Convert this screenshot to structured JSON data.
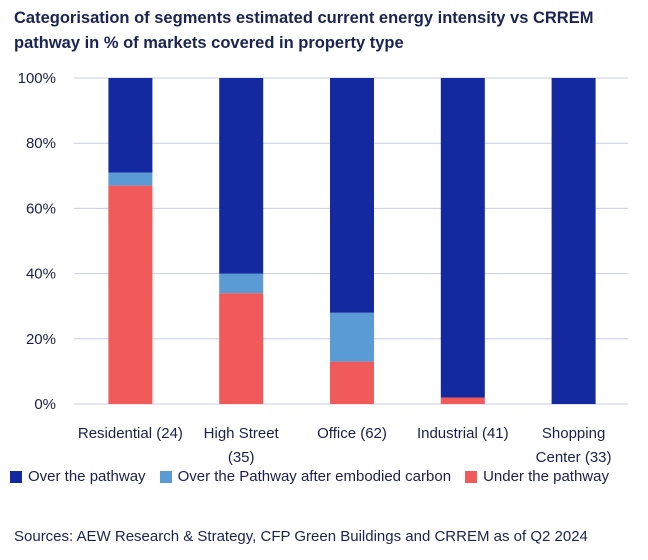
{
  "title": "Categorisation of segments estimated current energy intensity vs CRREM pathway in % of markets covered in property type",
  "source": "Sources: AEW Research & Strategy, CFP Green Buildings and CRREM as of Q2 2024",
  "chart_data": {
    "type": "bar",
    "stacked": true,
    "categories": [
      [
        "Residential (24)"
      ],
      [
        "High Street",
        "(35)"
      ],
      [
        "Office (62)"
      ],
      [
        "Industrial (41)"
      ],
      [
        "Shopping",
        "Center (33)"
      ]
    ],
    "series": [
      {
        "name": "Under the pathway",
        "color": "#f05a5a",
        "values": [
          67,
          34,
          13,
          2,
          0
        ]
      },
      {
        "name": "Over the Pathway after embodied carbon",
        "color": "#5b9bd5",
        "values": [
          4,
          6,
          15,
          0,
          0
        ]
      },
      {
        "name": "Over the pathway",
        "color": "#1428a0",
        "values": [
          29,
          60,
          72,
          98,
          100
        ]
      }
    ],
    "legend_order": [
      "Over the pathway",
      "Over the Pathway after embodied carbon",
      "Under the pathway"
    ],
    "ylim": [
      0,
      100
    ],
    "yticks": [
      0,
      20,
      40,
      60,
      80,
      100
    ],
    "ytick_labels": [
      "0%",
      "20%",
      "40%",
      "60%",
      "80%",
      "100%"
    ],
    "grid": true,
    "legend_position": "bottom"
  }
}
